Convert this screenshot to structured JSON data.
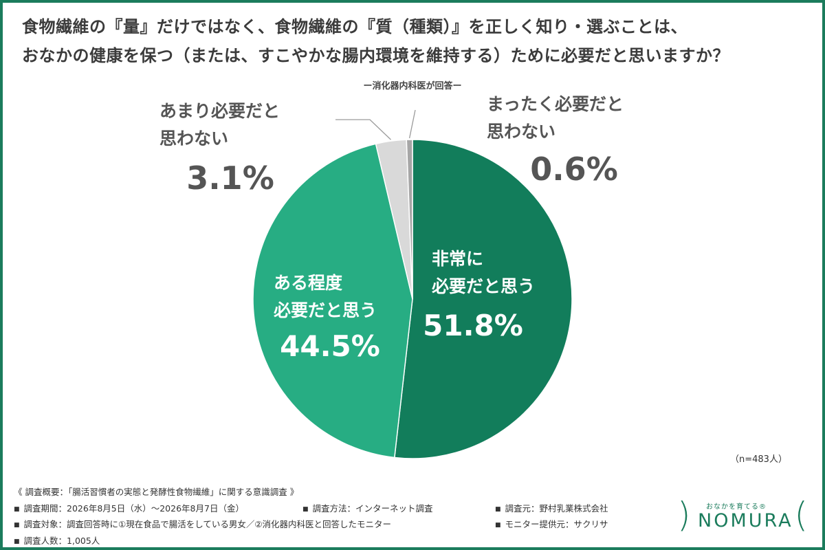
{
  "title_lines": [
    "食物繊維の『量』だけではなく、食物繊維の『質（種類）』を正しく知り・選ぶことは、",
    "おなかの健康を保つ（または、すこやかな腸内環境を維持する）ために必要だと思いますか？"
  ],
  "subtitle": "ー消化器内科医が回答ー",
  "chart_data": {
    "type": "pie",
    "title": "食物繊維の『量』だけではなく、食物繊維の『質（種類）』を正しく知り・選ぶことは、おなかの健康を保つ（または、すこやかな腸内環境を維持する）ために必要だと思いますか？",
    "subtitle": "ー消化器内科医が回答ー",
    "slices": [
      {
        "label_lines": [
          "非常に",
          "必要だと思う"
        ],
        "value": 51.8,
        "value_label": "51.8%",
        "color": "#127d5b"
      },
      {
        "label_lines": [
          "ある程度",
          "必要だと思う"
        ],
        "value": 44.5,
        "value_label": "44.5%",
        "color": "#27ad83"
      },
      {
        "label_lines": [
          "あまり必要だと",
          "思わない"
        ],
        "value": 3.1,
        "value_label": "3.1%",
        "color": "#d9d9d9"
      },
      {
        "label_lines": [
          "まったく必要だと",
          "思わない"
        ],
        "value": 0.6,
        "value_label": "0.6%",
        "color": "#a6a6a6"
      }
    ],
    "sample_note": "（n=483人）"
  },
  "notes": {
    "heading": "《 調査概要：「腸活習慣者の実態と発酵性食物繊維」に関する意識調査 》",
    "period": "調査期間：2026年8月5日（水）〜2026年8月7日（金）",
    "method": "調査方法：インターネット調査",
    "organizer": "調査元：野村乳業株式会社",
    "target": "調査対象：調査回答時に①現在食品で腸活をしている男女／②消化器内科医と回答したモニター",
    "provider": "モニター提供元：サクリサ",
    "count": "調査人数：1,005人",
    "bullet": "■"
  },
  "logo": {
    "tagline": "おなかを育てる®",
    "name": "NOMURA"
  },
  "colors": {
    "border": "#1b7c5c",
    "brand": "#1b7c5c",
    "outer_label": "#555555",
    "inner_label": "#ffffff"
  }
}
